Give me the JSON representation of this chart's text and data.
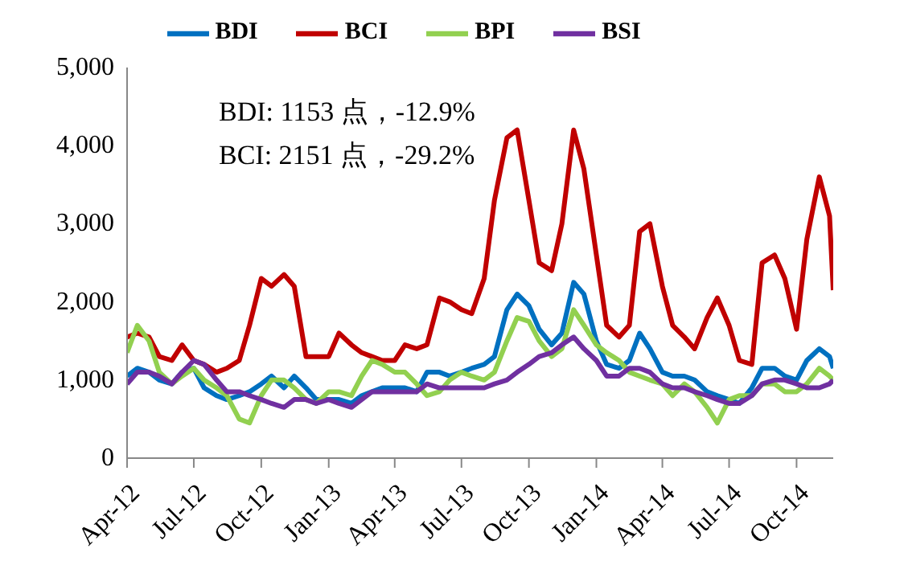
{
  "chart_data": {
    "type": "line",
    "legend": "top",
    "line_style": "solid",
    "annotations": [
      "BDI: 1153 点，-12.9%",
      "BCI: 2151 点，-29.2%"
    ],
    "x": [
      "2012-04-01",
      "2012-04-15",
      "2012-05-01",
      "2012-05-15",
      "2012-06-01",
      "2012-06-15",
      "2012-07-01",
      "2012-07-15",
      "2012-08-01",
      "2012-08-15",
      "2012-09-01",
      "2012-09-15",
      "2012-10-01",
      "2012-10-15",
      "2012-11-01",
      "2012-11-15",
      "2012-12-01",
      "2012-12-15",
      "2013-01-01",
      "2013-01-15",
      "2013-02-01",
      "2013-02-15",
      "2013-03-01",
      "2013-03-15",
      "2013-04-01",
      "2013-04-15",
      "2013-05-01",
      "2013-05-15",
      "2013-06-01",
      "2013-06-15",
      "2013-07-01",
      "2013-07-15",
      "2013-08-01",
      "2013-08-15",
      "2013-09-01",
      "2013-09-15",
      "2013-10-01",
      "2013-10-15",
      "2013-11-01",
      "2013-11-15",
      "2013-12-01",
      "2013-12-15",
      "2014-01-01",
      "2014-01-15",
      "2014-02-01",
      "2014-02-15",
      "2014-03-01",
      "2014-03-15",
      "2014-04-01",
      "2014-04-15",
      "2014-05-01",
      "2014-05-15",
      "2014-06-01",
      "2014-06-15",
      "2014-07-01",
      "2014-07-15",
      "2014-08-01",
      "2014-08-15",
      "2014-09-01",
      "2014-09-15",
      "2014-10-01",
      "2014-10-15",
      "2014-11-01",
      "2014-11-15",
      "2014-11-20"
    ],
    "xlim": [
      "2012-04-01",
      "2014-11-20"
    ],
    "xticks": [
      {
        "value": "2012-04-01",
        "label": "Apr-12"
      },
      {
        "value": "2012-07-01",
        "label": "Jul-12"
      },
      {
        "value": "2012-10-01",
        "label": "Oct-12"
      },
      {
        "value": "2013-01-01",
        "label": "Jan-13"
      },
      {
        "value": "2013-04-01",
        "label": "Apr-13"
      },
      {
        "value": "2013-07-01",
        "label": "Jul-13"
      },
      {
        "value": "2013-10-01",
        "label": "Oct-13"
      },
      {
        "value": "2014-01-01",
        "label": "Jan-14"
      },
      {
        "value": "2014-04-01",
        "label": "Apr-14"
      },
      {
        "value": "2014-07-01",
        "label": "Jul-14"
      },
      {
        "value": "2014-10-01",
        "label": "Oct-14"
      }
    ],
    "ylim": [
      0,
      5000
    ],
    "yticks": [
      0,
      {
        "value": 1000,
        "label": "1,000"
      },
      {
        "value": 2000,
        "label": "2,000"
      },
      {
        "value": 3000,
        "label": "3,000"
      },
      {
        "value": 4000,
        "label": "4,000"
      },
      {
        "value": 5000,
        "label": "5,000"
      }
    ],
    "series": [
      {
        "name": "BDI",
        "color": "#0070c0",
        "values": [
          1050,
          1150,
          1100,
          1000,
          950,
          1100,
          1150,
          900,
          800,
          750,
          800,
          850,
          950,
          1050,
          900,
          1050,
          900,
          750,
          750,
          750,
          700,
          800,
          850,
          900,
          900,
          900,
          850,
          1100,
          1100,
          1050,
          1100,
          1150,
          1200,
          1300,
          1900,
          2100,
          1950,
          1650,
          1450,
          1600,
          2250,
          2100,
          1500,
          1200,
          1150,
          1250,
          1600,
          1400,
          1100,
          1050,
          1050,
          1000,
          850,
          800,
          750,
          700,
          900,
          1150,
          1150,
          1050,
          1000,
          1250,
          1400,
          1300,
          1150
        ]
      },
      {
        "name": "BCI",
        "color": "#c00000",
        "values": [
          1550,
          1600,
          1550,
          1300,
          1250,
          1450,
          1250,
          1200,
          1100,
          1150,
          1250,
          1700,
          2300,
          2200,
          2350,
          2200,
          1300,
          1300,
          1300,
          1600,
          1450,
          1350,
          1300,
          1250,
          1250,
          1450,
          1400,
          1450,
          2050,
          2000,
          1900,
          1850,
          2300,
          3300,
          4100,
          4200,
          3300,
          2500,
          2400,
          3000,
          4200,
          3700,
          2600,
          1700,
          1550,
          1700,
          2900,
          3000,
          2200,
          1700,
          1550,
          1400,
          1800,
          2050,
          1700,
          1250,
          1200,
          2500,
          2600,
          2300,
          1650,
          2800,
          3600,
          3100,
          2150
        ]
      },
      {
        "name": "BPI",
        "color": "#92d050",
        "values": [
          1350,
          1700,
          1500,
          1100,
          950,
          1050,
          1150,
          1000,
          900,
          800,
          500,
          450,
          800,
          1000,
          1000,
          900,
          750,
          700,
          850,
          850,
          800,
          1050,
          1250,
          1200,
          1100,
          1100,
          950,
          800,
          850,
          1000,
          1100,
          1050,
          1000,
          1100,
          1500,
          1800,
          1750,
          1500,
          1300,
          1400,
          1900,
          1700,
          1450,
          1350,
          1250,
          1100,
          1050,
          1000,
          950,
          800,
          950,
          850,
          650,
          450,
          750,
          800,
          800,
          950,
          950,
          850,
          850,
          950,
          1150,
          1050,
          1000
        ]
      },
      {
        "name": "BSI",
        "color": "#7030a0",
        "values": [
          950,
          1100,
          1100,
          1050,
          950,
          1100,
          1250,
          1200,
          1000,
          850,
          850,
          800,
          750,
          700,
          650,
          750,
          750,
          700,
          750,
          700,
          650,
          750,
          850,
          850,
          850,
          850,
          850,
          950,
          900,
          900,
          900,
          900,
          900,
          950,
          1000,
          1100,
          1200,
          1300,
          1350,
          1450,
          1550,
          1400,
          1250,
          1050,
          1050,
          1150,
          1150,
          1100,
          950,
          900,
          900,
          850,
          800,
          750,
          700,
          700,
          800,
          950,
          1000,
          1000,
          950,
          900,
          900,
          950,
          1000
        ]
      }
    ]
  }
}
